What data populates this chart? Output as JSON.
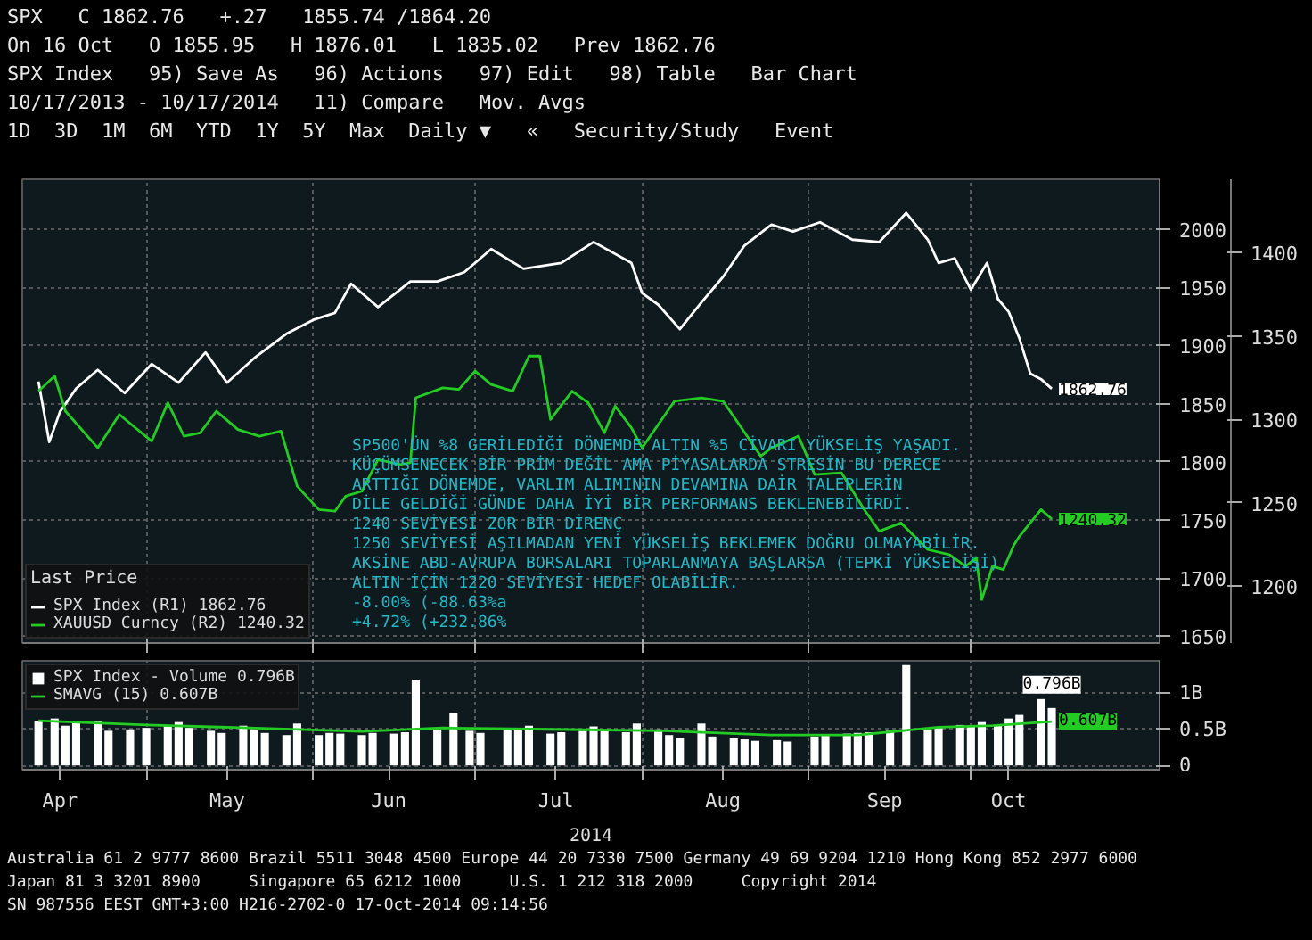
{
  "chart_data": [
    {
      "type": "other",
      "annotations": [
        "SPX   C 1862.76   +.27   1855.74 /1864.20",
        "On 16 Oct   O 1855.95   H 1876.01   L 1835.02   Prev 1862.76",
        "SPX Index   95) Save As   96) Actions   97) Edit   98) Table   Bar Chart",
        "10/17/2013 - 10/17/2014   11) Compare   Mov. Avgs",
        "1D  3D  1M  6M  YTD  1Y  5Y  Max  Daily ▼   «   Security/Study   Event"
      ]
    },
    {
      "type": "line",
      "legend": "bottom left",
      "legend_title": "Last Price",
      "grid": true,
      "tick_labels": "y",
      "marker": "none",
      "line_style": "solid",
      "xlim": [
        "2014-04-08",
        "2014-11-05"
      ],
      "ylim": [
        1644,
        2043
      ],
      "y2lim": [
        1166,
        1444
      ],
      "xticks": [
        {
          "value": "2014-05-01",
          "label": null
        },
        {
          "value": "2014-06-01",
          "label": null
        },
        {
          "value": "2014-07-01",
          "label": null
        },
        {
          "value": "2014-08-01",
          "label": null
        },
        {
          "value": "2014-09-01",
          "label": null
        },
        {
          "value": "2014-10-01",
          "label": null
        }
      ],
      "yticks": [
        1650,
        1700,
        1750,
        1800,
        1850,
        1900,
        1950,
        2000
      ],
      "y2ticks": [
        1200,
        1250,
        1300,
        1350,
        1400
      ],
      "series": [
        {
          "name": "SPX Index (R1) 1862.76",
          "color": "#ffffff",
          "x": [
            "2014-04-11",
            "2014-04-13",
            "2014-04-15",
            "2014-04-18",
            "2014-04-22",
            "2014-04-27",
            "2014-05-02",
            "2014-05-07",
            "2014-05-12",
            "2014-05-16",
            "2014-05-21",
            "2014-05-27",
            "2014-06-01",
            "2014-06-05",
            "2014-06-08",
            "2014-06-13",
            "2014-06-19",
            "2014-06-24",
            "2014-06-29",
            "2014-07-04",
            "2014-07-10",
            "2014-07-17",
            "2014-07-23",
            "2014-07-30",
            "2014-08-01",
            "2014-08-04",
            "2014-08-08",
            "2014-08-12",
            "2014-08-16",
            "2014-08-20",
            "2014-08-25",
            "2014-08-29",
            "2014-09-03",
            "2014-09-09",
            "2014-09-14",
            "2014-09-19",
            "2014-09-23",
            "2014-09-25",
            "2014-09-28",
            "2014-10-01",
            "2014-10-04",
            "2014-10-06",
            "2014-10-08",
            "2014-10-10",
            "2014-10-12",
            "2014-10-14",
            "2014-10-16"
          ],
          "values": [
            1869,
            1817,
            1843,
            1863,
            1879,
            1859,
            1884,
            1868,
            1894,
            1868,
            1889,
            1910,
            1922,
            1928,
            1953,
            1933,
            1955,
            1955,
            1963,
            1983,
            1966,
            1971,
            1989,
            1971,
            1945,
            1935,
            1914,
            1937,
            1959,
            1986,
            2004,
            1998,
            2006,
            1991,
            1989,
            2014,
            1991,
            1971,
            1975,
            1948,
            1971,
            1940,
            1929,
            1906,
            1876,
            1871,
            1862.76
          ],
          "value_labels": [
            null,
            null,
            null,
            null,
            null,
            null,
            null,
            null,
            null,
            null,
            null,
            null,
            null,
            null,
            null,
            null,
            null,
            null,
            null,
            null,
            null,
            null,
            null,
            null,
            null,
            null,
            null,
            null,
            null,
            null,
            null,
            null,
            null,
            null,
            null,
            null,
            null,
            null,
            null,
            null,
            null,
            null,
            null,
            null,
            null,
            null,
            "1862.76"
          ]
        },
        {
          "name": "XAUUSD Curncy (R2) 1240.32",
          "color": "#22cc22",
          "axis": "y2",
          "x": [
            "2014-04-11",
            "2014-04-14",
            "2014-04-16",
            "2014-04-22",
            "2014-04-26",
            "2014-04-29",
            "2014-05-02",
            "2014-05-05",
            "2014-05-08",
            "2014-05-11",
            "2014-05-14",
            "2014-05-18",
            "2014-05-22",
            "2014-05-26",
            "2014-05-29",
            "2014-06-02",
            "2014-06-05",
            "2014-06-07",
            "2014-06-10",
            "2014-06-13",
            "2014-06-17",
            "2014-06-19",
            "2014-06-20",
            "2014-06-25",
            "2014-06-28",
            "2014-07-01",
            "2014-07-04",
            "2014-07-08",
            "2014-07-11",
            "2014-07-13",
            "2014-07-15",
            "2014-07-19",
            "2014-07-22",
            "2014-07-25",
            "2014-07-27",
            "2014-07-30",
            "2014-08-01",
            "2014-08-07",
            "2014-08-12",
            "2014-08-16",
            "2014-08-19",
            "2014-08-23",
            "2014-08-25",
            "2014-08-30",
            "2014-09-02",
            "2014-09-07",
            "2014-09-11",
            "2014-09-14",
            "2014-09-18",
            "2014-09-23",
            "2014-09-27",
            "2014-09-30",
            "2014-10-02",
            "2014-10-03",
            "2014-10-05",
            "2014-10-07",
            "2014-10-09",
            "2014-10-10",
            "2014-10-12",
            "2014-10-14",
            "2014-10-16"
          ],
          "values": [
            1317,
            1326,
            1305,
            1283,
            1303,
            1295,
            1287,
            1310,
            1290,
            1292,
            1305,
            1294,
            1290,
            1293,
            1260,
            1246,
            1245,
            1254,
            1257,
            1276,
            1273,
            1274,
            1313,
            1319,
            1318,
            1329,
            1321,
            1317,
            1338,
            1338,
            1300,
            1317,
            1310,
            1292,
            1308,
            1295,
            1283,
            1311,
            1313,
            1311,
            1297,
            1278,
            1283,
            1290,
            1267,
            1268,
            1247,
            1233,
            1238,
            1222,
            1219,
            1212,
            1217,
            1192,
            1212,
            1210,
            1225,
            1230,
            1238,
            1246,
            1240.32
          ],
          "value_labels": [
            null,
            null,
            null,
            null,
            null,
            null,
            null,
            null,
            null,
            null,
            null,
            null,
            null,
            null,
            null,
            null,
            null,
            null,
            null,
            null,
            null,
            null,
            null,
            null,
            null,
            null,
            null,
            null,
            null,
            null,
            null,
            null,
            null,
            null,
            null,
            null,
            null,
            null,
            null,
            null,
            null,
            null,
            null,
            null,
            null,
            null,
            null,
            null,
            null,
            null,
            null,
            null,
            null,
            null,
            null,
            null,
            null,
            null,
            null,
            null,
            "1240.32"
          ]
        }
      ],
      "annotations": [
        "SP500'ÜN %8 GERİLEDİĞİ DÖNEMDE ALTIN %5 CİVARI YÜKSELİŞ YAŞADI.",
        "KÜÇÜMSENECEK BİR PRİM DEĞİL AMA PİYASALARDA STRESİN BU DERECE",
        "ARTTIĞI DÖNEMDE, VARLIM ALIMININ DEVAMINA DAİR TALEPLERİN",
        "DİLE GELDİĞİ GÜNDE DAHA İYİ BİR PERFORMANS BEKLENEBİLİRDİ.",
        "1240 SEVİYESİ ZOR BİR DİRENÇ",
        "1250 SEVİYESİ AŞILMADAN YENİ YÜKSELİŞ BEKLEMEK DOĞRU OLMAYABİLİR.",
        "AKSİNE ABD-AVRUPA BORSALARI TOPARLANMAYA BAŞLARSA (TEPKİ YÜKSELİŞİ)",
        "ALTIN İÇİN 1220 SEVİYESİ HEDEF OLABİLİR.",
        "-8.00% (-88.63%a",
        "+4.72% (+232.86%"
      ]
    },
    {
      "type": "bar",
      "legend": "top left",
      "grid": true,
      "xlabel": "2014",
      "xlim": [
        "2014-04-08",
        "2014-11-05"
      ],
      "ylim": [
        -0.06,
        1.45
      ],
      "xticks": [
        {
          "value": "2014-04-15",
          "label": "Apr"
        },
        {
          "value": "2014-05-01",
          "label": null
        },
        {
          "value": "2014-05-16",
          "label": "May"
        },
        {
          "value": "2014-06-01",
          "label": null
        },
        {
          "value": "2014-06-15",
          "label": "Jun"
        },
        {
          "value": "2014-07-01",
          "label": null
        },
        {
          "value": "2014-07-16",
          "label": "Jul"
        },
        {
          "value": "2014-08-01",
          "label": null
        },
        {
          "value": "2014-08-16",
          "label": "Aug"
        },
        {
          "value": "2014-09-01",
          "label": null
        },
        {
          "value": "2014-09-15",
          "label": "Sep"
        },
        {
          "value": "2014-10-01",
          "label": null
        },
        {
          "value": "2014-10-08",
          "label": "Oct"
        }
      ],
      "yticks": [
        0,
        {
          "value": 0.5,
          "label": "0.5B"
        },
        {
          "value": 1,
          "label": "1B"
        }
      ],
      "series": [
        {
          "name": "SPX Index - Volume 0.796B",
          "color": "#ffffff",
          "x": [
            "2014-04-11",
            "2014-04-14",
            "2014-04-16",
            "2014-04-18",
            "2014-04-22",
            "2014-04-24",
            "2014-04-28",
            "2014-05-01",
            "2014-05-05",
            "2014-05-07",
            "2014-05-09",
            "2014-05-13",
            "2014-05-15",
            "2014-05-19",
            "2014-05-21",
            "2014-05-23",
            "2014-05-27",
            "2014-05-29",
            "2014-06-02",
            "2014-06-04",
            "2014-06-06",
            "2014-06-10",
            "2014-06-12",
            "2014-06-16",
            "2014-06-18",
            "2014-06-20",
            "2014-06-24",
            "2014-06-27",
            "2014-06-30",
            "2014-07-02",
            "2014-07-07",
            "2014-07-09",
            "2014-07-11",
            "2014-07-15",
            "2014-07-17",
            "2014-07-21",
            "2014-07-23",
            "2014-07-25",
            "2014-07-29",
            "2014-07-31",
            "2014-08-04",
            "2014-08-06",
            "2014-08-08",
            "2014-08-12",
            "2014-08-14",
            "2014-08-18",
            "2014-08-20",
            "2014-08-22",
            "2014-08-26",
            "2014-08-28",
            "2014-09-02",
            "2014-09-04",
            "2014-09-08",
            "2014-09-10",
            "2014-09-12",
            "2014-09-16",
            "2014-09-19",
            "2014-09-23",
            "2014-09-25",
            "2014-09-29",
            "2014-10-01",
            "2014-10-03",
            "2014-10-06",
            "2014-10-08",
            "2014-10-10",
            "2014-10-14",
            "2014-10-16"
          ],
          "values": [
            0.62,
            0.65,
            0.55,
            0.6,
            0.62,
            0.48,
            0.5,
            0.52,
            0.55,
            0.6,
            0.52,
            0.48,
            0.45,
            0.55,
            0.5,
            0.45,
            0.42,
            0.58,
            0.42,
            0.45,
            0.44,
            0.42,
            0.45,
            0.44,
            0.46,
            1.19,
            0.5,
            0.73,
            0.48,
            0.45,
            0.52,
            0.5,
            0.55,
            0.44,
            0.46,
            0.48,
            0.54,
            0.5,
            0.46,
            0.58,
            0.5,
            0.42,
            0.38,
            0.58,
            0.4,
            0.38,
            0.36,
            0.34,
            0.35,
            0.33,
            0.4,
            0.42,
            0.44,
            0.45,
            0.46,
            0.48,
            1.39,
            0.5,
            0.52,
            0.56,
            0.55,
            0.6,
            0.56,
            0.65,
            0.7,
            0.92,
            0.796
          ],
          "value_labels": [
            null,
            null,
            null,
            null,
            null,
            null,
            null,
            null,
            null,
            null,
            null,
            null,
            null,
            null,
            null,
            null,
            null,
            null,
            null,
            null,
            null,
            null,
            null,
            null,
            null,
            null,
            null,
            null,
            null,
            null,
            null,
            null,
            null,
            null,
            null,
            null,
            null,
            null,
            null,
            null,
            null,
            null,
            null,
            null,
            null,
            null,
            null,
            null,
            null,
            null,
            null,
            null,
            null,
            null,
            null,
            null,
            null,
            null,
            null,
            null,
            null,
            null,
            null,
            null,
            null,
            null,
            "0.796B"
          ]
        },
        {
          "name": "SMAVG (15) 0.607B",
          "color": "#22cc22",
          "type": "line",
          "x": [
            "2014-04-11",
            "2014-05-01",
            "2014-05-20",
            "2014-06-10",
            "2014-06-25",
            "2014-07-15",
            "2014-08-05",
            "2014-08-25",
            "2014-09-10",
            "2014-09-25",
            "2014-10-05",
            "2014-10-16"
          ],
          "values": [
            0.62,
            0.56,
            0.52,
            0.47,
            0.52,
            0.5,
            0.48,
            0.42,
            0.42,
            0.53,
            0.55,
            0.607
          ],
          "value_labels": [
            null,
            null,
            null,
            null,
            null,
            null,
            null,
            null,
            null,
            null,
            null,
            "0.607B"
          ]
        }
      ]
    },
    {
      "type": "other",
      "annotations": [
        "Australia 61 2 9777 8600 Brazil 5511 3048 4500 Europe 44 20 7330 7500 Germany 49 69 9204 1210 Hong Kong 852 2977 6000",
        "Japan 81 3 3201 8900     Singapore 65 6212 1000     U.S. 1 212 318 2000     Copyright 2014",
        "SN 987556 EEST GMT+3:00 H216-2702-0 17-Oct-2014 09:14:56"
      ]
    }
  ]
}
